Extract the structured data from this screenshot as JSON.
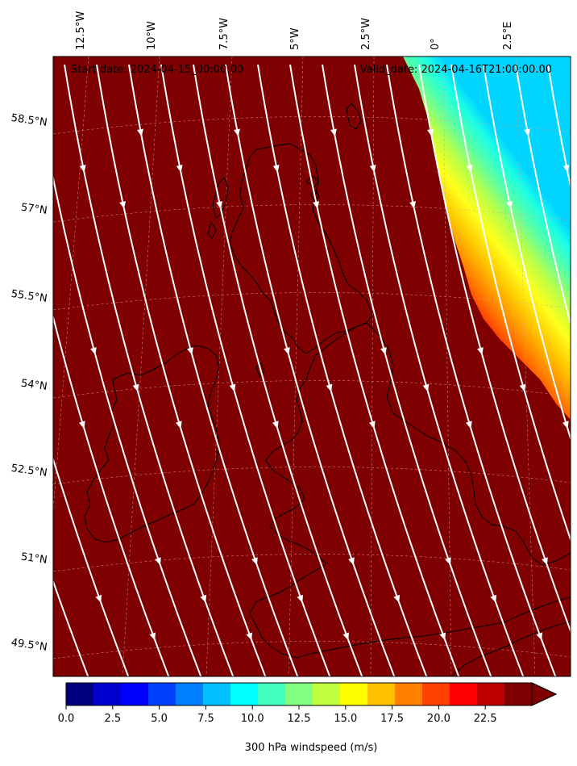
{
  "header": {
    "start_date": "Start date: 2024-04-15_00:00:00",
    "valid_date": "Valid_date: 2024-04-16T21:00:00.00"
  },
  "map": {
    "field": "300 hPa windspeed",
    "lon_labels": [
      "12.5°W",
      "10°W",
      "7.5°W",
      "5°W",
      "2.5°W",
      "0°",
      "2.5°E"
    ],
    "lat_labels": [
      "58.5°N",
      "57°N",
      "55.5°N",
      "54°N",
      "52.5°N",
      "51°N",
      "49.5°N"
    ],
    "background_color": "#7f0000",
    "streamline_color": "#ffffff",
    "coastline_color": "#000000",
    "gradient_colors": [
      "#7f0000",
      "#b30000",
      "#e60000",
      "#ff3300",
      "#ff6600",
      "#ff9900",
      "#ffcc00",
      "#ffff00",
      "#ccff33",
      "#80ff80",
      "#33ffcc",
      "#00ffff",
      "#00ccff"
    ]
  },
  "colorbar": {
    "title": "300 hPa windspeed (m/s)",
    "min": 0,
    "max": 25,
    "extend": "max",
    "ticks": [
      "0.0",
      "2.5",
      "5.0",
      "7.5",
      "10.0",
      "12.5",
      "15.0",
      "17.5",
      "20.0",
      "22.5"
    ],
    "colors": [
      "#00007f",
      "#0000cc",
      "#0000ff",
      "#0040ff",
      "#0080ff",
      "#00c0ff",
      "#00ffff",
      "#40ffbf",
      "#80ff80",
      "#bfff40",
      "#ffff00",
      "#ffc000",
      "#ff8000",
      "#ff4000",
      "#ff0000",
      "#bf0000",
      "#7f0000"
    ]
  }
}
